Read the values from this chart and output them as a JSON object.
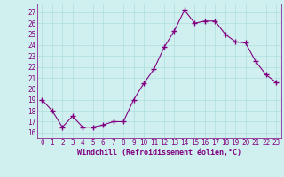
{
  "x": [
    0,
    1,
    2,
    3,
    4,
    5,
    6,
    7,
    8,
    9,
    10,
    11,
    12,
    13,
    14,
    15,
    16,
    17,
    18,
    19,
    20,
    21,
    22,
    23
  ],
  "y": [
    19,
    18,
    16.5,
    17.5,
    16.5,
    16.5,
    16.7,
    17,
    17,
    19,
    20.5,
    21.8,
    23.8,
    25.3,
    27.2,
    26,
    26.2,
    26.2,
    25,
    24.3,
    24.2,
    22.5,
    21.3,
    20.6
  ],
  "line_color": "#800080",
  "marker_color": "#800080",
  "bg_color": "#d0f0f0",
  "grid_color": "#b0dede",
  "ylabel_ticks": [
    16,
    17,
    18,
    19,
    20,
    21,
    22,
    23,
    24,
    25,
    26,
    27
  ],
  "xlabel": "Windchill (Refroidissement éolien,°C)",
  "ylim": [
    15.5,
    27.8
  ],
  "xlim": [
    -0.5,
    23.5
  ],
  "tick_color": "#800080",
  "font": "monospace",
  "tick_fontsize": 5.5,
  "xlabel_fontsize": 6.0
}
